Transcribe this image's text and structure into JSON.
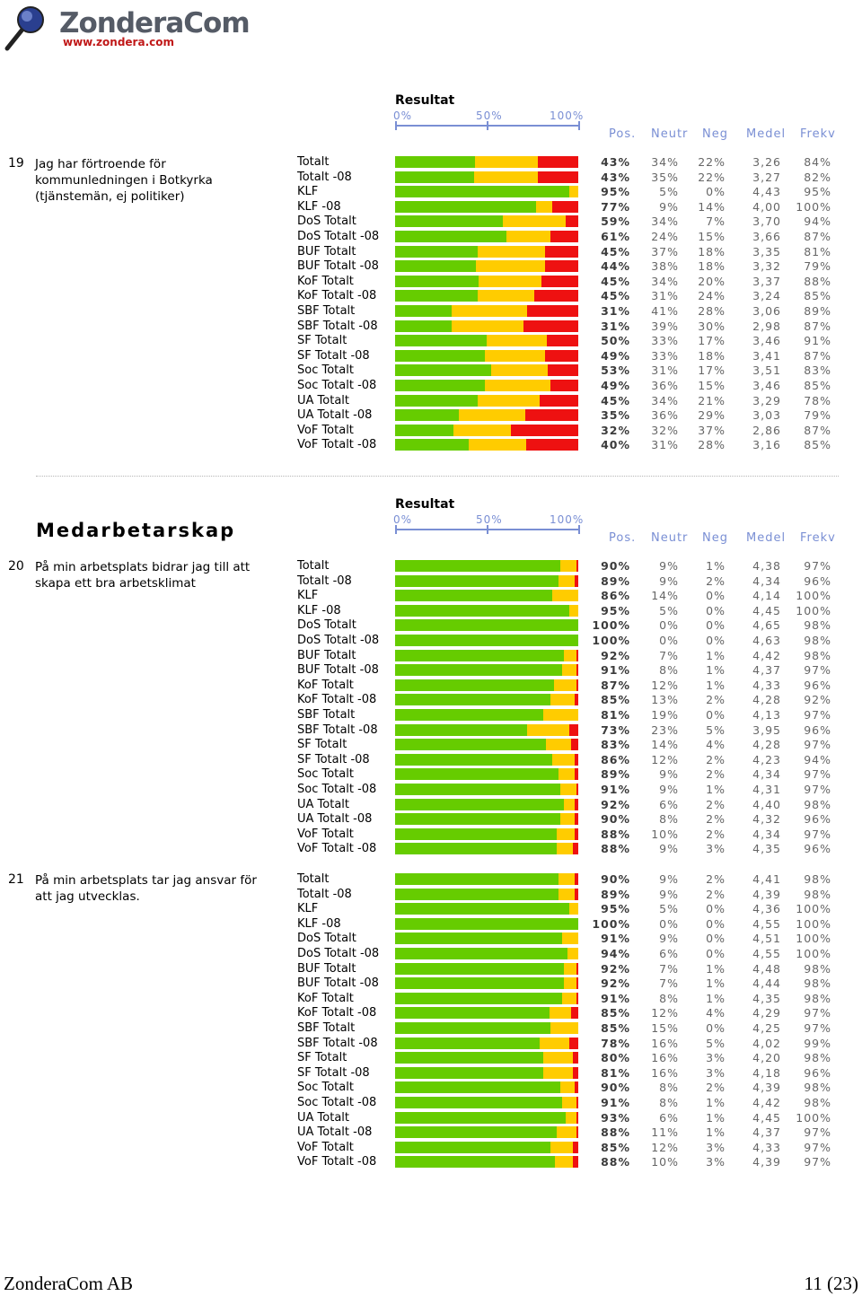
{
  "logo": {
    "name": "ZonderaCom",
    "url": "www.zondera.com"
  },
  "header": {
    "result_label": "Resultat",
    "scale": [
      "0%",
      "50%",
      "100%"
    ],
    "columns": [
      "Pos.",
      "Neutr",
      "Neg",
      "Medel",
      "Frekv"
    ]
  },
  "section_title": "Medarbetarskap",
  "colors": {
    "positive": "#66cc00",
    "neutral": "#ffcc00",
    "negative": "#ee1111",
    "header_text": "#7a8fd4"
  },
  "questions": [
    {
      "num": "19",
      "text": "Jag har förtroende för kommunledningen i Botkyrka (tjänstemän, ej politiker)",
      "rows": [
        {
          "label": "Totalt",
          "pos": "43%",
          "neu": "34%",
          "neg": "22%",
          "med": "3,26",
          "frk": "84%"
        },
        {
          "label": "Totalt -08",
          "pos": "43%",
          "neu": "35%",
          "neg": "22%",
          "med": "3,27",
          "frk": "82%"
        },
        {
          "label": "KLF",
          "pos": "95%",
          "neu": "5%",
          "neg": "0%",
          "med": "4,43",
          "frk": "95%"
        },
        {
          "label": "KLF -08",
          "pos": "77%",
          "neu": "9%",
          "neg": "14%",
          "med": "4,00",
          "frk": "100%"
        },
        {
          "label": "DoS Totalt",
          "pos": "59%",
          "neu": "34%",
          "neg": "7%",
          "med": "3,70",
          "frk": "94%"
        },
        {
          "label": "DoS Totalt -08",
          "pos": "61%",
          "neu": "24%",
          "neg": "15%",
          "med": "3,66",
          "frk": "87%"
        },
        {
          "label": "BUF Totalt",
          "pos": "45%",
          "neu": "37%",
          "neg": "18%",
          "med": "3,35",
          "frk": "81%"
        },
        {
          "label": "BUF Totalt -08",
          "pos": "44%",
          "neu": "38%",
          "neg": "18%",
          "med": "3,32",
          "frk": "79%"
        },
        {
          "label": "KoF Totalt",
          "pos": "45%",
          "neu": "34%",
          "neg": "20%",
          "med": "3,37",
          "frk": "88%"
        },
        {
          "label": "KoF Totalt -08",
          "pos": "45%",
          "neu": "31%",
          "neg": "24%",
          "med": "3,24",
          "frk": "85%"
        },
        {
          "label": "SBF Totalt",
          "pos": "31%",
          "neu": "41%",
          "neg": "28%",
          "med": "3,06",
          "frk": "89%"
        },
        {
          "label": "SBF Totalt -08",
          "pos": "31%",
          "neu": "39%",
          "neg": "30%",
          "med": "2,98",
          "frk": "87%"
        },
        {
          "label": "SF Totalt",
          "pos": "50%",
          "neu": "33%",
          "neg": "17%",
          "med": "3,46",
          "frk": "91%"
        },
        {
          "label": "SF Totalt -08",
          "pos": "49%",
          "neu": "33%",
          "neg": "18%",
          "med": "3,41",
          "frk": "87%"
        },
        {
          "label": "Soc Totalt",
          "pos": "53%",
          "neu": "31%",
          "neg": "17%",
          "med": "3,51",
          "frk": "83%"
        },
        {
          "label": "Soc Totalt -08",
          "pos": "49%",
          "neu": "36%",
          "neg": "15%",
          "med": "3,46",
          "frk": "85%"
        },
        {
          "label": "UA Totalt",
          "pos": "45%",
          "neu": "34%",
          "neg": "21%",
          "med": "3,29",
          "frk": "78%"
        },
        {
          "label": "UA Totalt -08",
          "pos": "35%",
          "neu": "36%",
          "neg": "29%",
          "med": "3,03",
          "frk": "79%"
        },
        {
          "label": "VoF Totalt",
          "pos": "32%",
          "neu": "32%",
          "neg": "37%",
          "med": "2,86",
          "frk": "87%"
        },
        {
          "label": "VoF Totalt -08",
          "pos": "40%",
          "neu": "31%",
          "neg": "28%",
          "med": "3,16",
          "frk": "85%"
        }
      ]
    },
    {
      "num": "20",
      "text": "På min arbetsplats bidrar jag till att skapa ett bra arbetsklimat",
      "rows": [
        {
          "label": "Totalt",
          "pos": "90%",
          "neu": "9%",
          "neg": "1%",
          "med": "4,38",
          "frk": "97%"
        },
        {
          "label": "Totalt -08",
          "pos": "89%",
          "neu": "9%",
          "neg": "2%",
          "med": "4,34",
          "frk": "96%"
        },
        {
          "label": "KLF",
          "pos": "86%",
          "neu": "14%",
          "neg": "0%",
          "med": "4,14",
          "frk": "100%"
        },
        {
          "label": "KLF -08",
          "pos": "95%",
          "neu": "5%",
          "neg": "0%",
          "med": "4,45",
          "frk": "100%"
        },
        {
          "label": "DoS Totalt",
          "pos": "100%",
          "neu": "0%",
          "neg": "0%",
          "med": "4,65",
          "frk": "98%"
        },
        {
          "label": "DoS Totalt -08",
          "pos": "100%",
          "neu": "0%",
          "neg": "0%",
          "med": "4,63",
          "frk": "98%"
        },
        {
          "label": "BUF Totalt",
          "pos": "92%",
          "neu": "7%",
          "neg": "1%",
          "med": "4,42",
          "frk": "98%"
        },
        {
          "label": "BUF Totalt -08",
          "pos": "91%",
          "neu": "8%",
          "neg": "1%",
          "med": "4,37",
          "frk": "97%"
        },
        {
          "label": "KoF Totalt",
          "pos": "87%",
          "neu": "12%",
          "neg": "1%",
          "med": "4,33",
          "frk": "96%"
        },
        {
          "label": "KoF Totalt -08",
          "pos": "85%",
          "neu": "13%",
          "neg": "2%",
          "med": "4,28",
          "frk": "92%"
        },
        {
          "label": "SBF Totalt",
          "pos": "81%",
          "neu": "19%",
          "neg": "0%",
          "med": "4,13",
          "frk": "97%"
        },
        {
          "label": "SBF Totalt -08",
          "pos": "73%",
          "neu": "23%",
          "neg": "5%",
          "med": "3,95",
          "frk": "96%"
        },
        {
          "label": "SF Totalt",
          "pos": "83%",
          "neu": "14%",
          "neg": "4%",
          "med": "4,28",
          "frk": "97%"
        },
        {
          "label": "SF Totalt -08",
          "pos": "86%",
          "neu": "12%",
          "neg": "2%",
          "med": "4,23",
          "frk": "94%"
        },
        {
          "label": "Soc Totalt",
          "pos": "89%",
          "neu": "9%",
          "neg": "2%",
          "med": "4,34",
          "frk": "97%"
        },
        {
          "label": "Soc Totalt -08",
          "pos": "91%",
          "neu": "9%",
          "neg": "1%",
          "med": "4,31",
          "frk": "97%"
        },
        {
          "label": "UA Totalt",
          "pos": "92%",
          "neu": "6%",
          "neg": "2%",
          "med": "4,40",
          "frk": "98%"
        },
        {
          "label": "UA Totalt -08",
          "pos": "90%",
          "neu": "8%",
          "neg": "2%",
          "med": "4,32",
          "frk": "96%"
        },
        {
          "label": "VoF Totalt",
          "pos": "88%",
          "neu": "10%",
          "neg": "2%",
          "med": "4,34",
          "frk": "97%"
        },
        {
          "label": "VoF Totalt -08",
          "pos": "88%",
          "neu": "9%",
          "neg": "3%",
          "med": "4,35",
          "frk": "96%"
        }
      ]
    },
    {
      "num": "21",
      "text": "På min arbetsplats tar jag ansvar för att jag utvecklas.",
      "rows": [
        {
          "label": "Totalt",
          "pos": "90%",
          "neu": "9%",
          "neg": "2%",
          "med": "4,41",
          "frk": "98%"
        },
        {
          "label": "Totalt -08",
          "pos": "89%",
          "neu": "9%",
          "neg": "2%",
          "med": "4,39",
          "frk": "98%"
        },
        {
          "label": "KLF",
          "pos": "95%",
          "neu": "5%",
          "neg": "0%",
          "med": "4,36",
          "frk": "100%"
        },
        {
          "label": "KLF -08",
          "pos": "100%",
          "neu": "0%",
          "neg": "0%",
          "med": "4,55",
          "frk": "100%"
        },
        {
          "label": "DoS Totalt",
          "pos": "91%",
          "neu": "9%",
          "neg": "0%",
          "med": "4,51",
          "frk": "100%"
        },
        {
          "label": "DoS Totalt -08",
          "pos": "94%",
          "neu": "6%",
          "neg": "0%",
          "med": "4,55",
          "frk": "100%"
        },
        {
          "label": "BUF Totalt",
          "pos": "92%",
          "neu": "7%",
          "neg": "1%",
          "med": "4,48",
          "frk": "98%"
        },
        {
          "label": "BUF Totalt -08",
          "pos": "92%",
          "neu": "7%",
          "neg": "1%",
          "med": "4,44",
          "frk": "98%"
        },
        {
          "label": "KoF Totalt",
          "pos": "91%",
          "neu": "8%",
          "neg": "1%",
          "med": "4,35",
          "frk": "98%"
        },
        {
          "label": "KoF Totalt -08",
          "pos": "85%",
          "neu": "12%",
          "neg": "4%",
          "med": "4,29",
          "frk": "97%"
        },
        {
          "label": "SBF Totalt",
          "pos": "85%",
          "neu": "15%",
          "neg": "0%",
          "med": "4,25",
          "frk": "97%"
        },
        {
          "label": "SBF Totalt -08",
          "pos": "78%",
          "neu": "16%",
          "neg": "5%",
          "med": "4,02",
          "frk": "99%"
        },
        {
          "label": "SF Totalt",
          "pos": "80%",
          "neu": "16%",
          "neg": "3%",
          "med": "4,20",
          "frk": "98%"
        },
        {
          "label": "SF Totalt -08",
          "pos": "81%",
          "neu": "16%",
          "neg": "3%",
          "med": "4,18",
          "frk": "96%"
        },
        {
          "label": "Soc Totalt",
          "pos": "90%",
          "neu": "8%",
          "neg": "2%",
          "med": "4,39",
          "frk": "98%"
        },
        {
          "label": "Soc Totalt -08",
          "pos": "91%",
          "neu": "8%",
          "neg": "1%",
          "med": "4,42",
          "frk": "98%"
        },
        {
          "label": "UA Totalt",
          "pos": "93%",
          "neu": "6%",
          "neg": "1%",
          "med": "4,45",
          "frk": "100%"
        },
        {
          "label": "UA Totalt -08",
          "pos": "88%",
          "neu": "11%",
          "neg": "1%",
          "med": "4,37",
          "frk": "97%"
        },
        {
          "label": "VoF Totalt",
          "pos": "85%",
          "neu": "12%",
          "neg": "3%",
          "med": "4,33",
          "frk": "97%"
        },
        {
          "label": "VoF Totalt -08",
          "pos": "88%",
          "neu": "10%",
          "neg": "3%",
          "med": "4,39",
          "frk": "97%"
        }
      ]
    }
  ],
  "footer": {
    "company": "ZonderaCom AB",
    "page": "11 (23)"
  }
}
